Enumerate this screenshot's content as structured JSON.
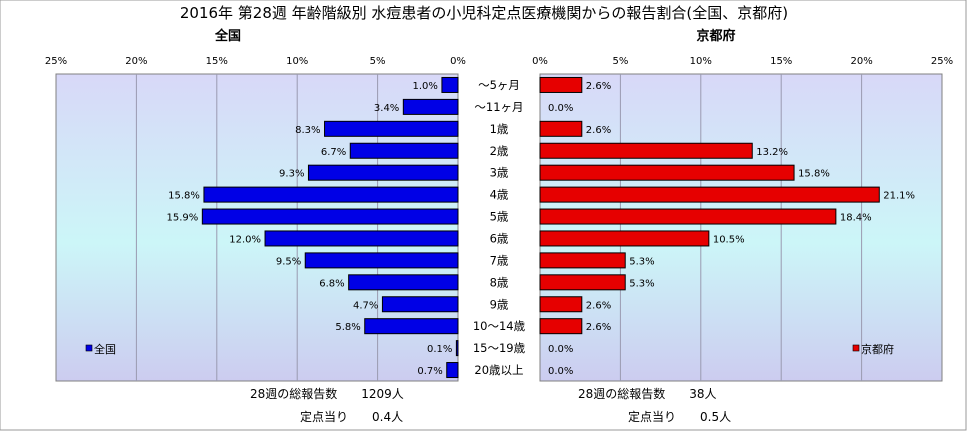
{
  "title": "2016年 第28週 年齢階級別 水痘患者の小児科定点医療機関からの報告割合(全国、京都府)",
  "chart_data": {
    "type": "bar",
    "orientation": "horizontal",
    "categories": [
      "～5ヶ月",
      "～11ヶ月",
      "1歳",
      "2歳",
      "3歳",
      "4歳",
      "5歳",
      "6歳",
      "7歳",
      "8歳",
      "9歳",
      "10～14歳",
      "15～19歳",
      "20歳以上"
    ],
    "xlim": [
      0,
      25
    ],
    "ticks": [
      "25%",
      "20%",
      "15%",
      "10%",
      "5%",
      "0%"
    ],
    "ticks_right": [
      "0%",
      "5%",
      "10%",
      "15%",
      "20%",
      "25%"
    ],
    "grid": true,
    "panels": [
      {
        "title": "全国",
        "legend": "全国",
        "legend_position": "bottom-left",
        "color": "#0000e6",
        "direction": "left",
        "values": [
          1.0,
          3.4,
          8.3,
          6.7,
          9.3,
          15.8,
          15.9,
          12.0,
          9.5,
          6.8,
          4.7,
          5.8,
          0.1,
          0.7
        ],
        "labels": [
          "1.0%",
          "3.4%",
          "8.3%",
          "6.7%",
          "9.3%",
          "15.8%",
          "15.9%",
          "12.0%",
          "9.5%",
          "6.8%",
          "4.7%",
          "5.8%",
          "0.1%",
          "0.7%"
        ]
      },
      {
        "title": "京都府",
        "legend": "京都府",
        "legend_position": "bottom-right",
        "color": "#e60000",
        "direction": "right",
        "values": [
          2.6,
          0.0,
          2.6,
          13.2,
          15.8,
          21.1,
          18.4,
          10.5,
          5.3,
          5.3,
          2.6,
          2.6,
          0.0,
          0.0
        ],
        "labels": [
          "2.6%",
          "0.0%",
          "2.6%",
          "13.2%",
          "15.8%",
          "21.1%",
          "18.4%",
          "10.5%",
          "5.3%",
          "5.3%",
          "2.6%",
          "2.6%",
          "0.0%",
          "0.0%"
        ]
      }
    ]
  },
  "footer": {
    "national_total": "28週の総報告数　　1209人",
    "national_per": "定点当り　　0.4人",
    "kyoto_total": "28週の総報告数　　38人",
    "kyoto_per": "定点当り　　0.5人"
  }
}
